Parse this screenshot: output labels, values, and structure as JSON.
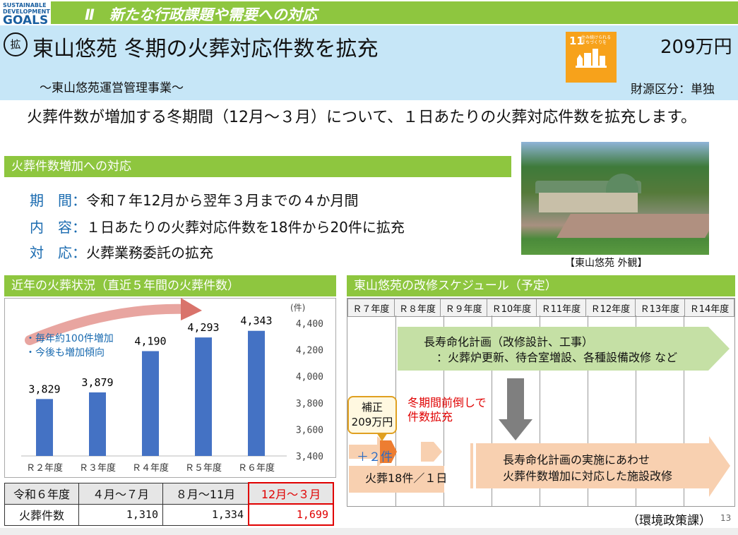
{
  "header": {
    "sdg_logo_lines": [
      "SUSTAINABLE",
      "DEVELOPMENT",
      "GOALS"
    ],
    "section": "Ⅱ　新たな行政課題や需要への対応",
    "badge": "拡",
    "title": "東山悠苑 冬期の火葬対応件数を拡充",
    "subtitle": "〜東山悠苑運営管理事業〜",
    "sdg_number": "11",
    "sdg_text": "住み続けられる まちづくりを",
    "budget": "209万円",
    "funding": "財源区分：単独"
  },
  "intro": "火葬件数が増加する冬期間（12月〜３月）について、１日あたりの火葬対応件数を拡充します。",
  "response": {
    "heading": "火葬件数増加への対応",
    "items": [
      {
        "key": "期　間：",
        "value": "令和７年12月から翌年３月までの４か月間"
      },
      {
        "key": "内　容：",
        "value": "１日あたりの火葬対応件数を18件から20件に拡充"
      },
      {
        "key": "対　応：",
        "value": "火葬業務委託の拡充"
      }
    ]
  },
  "photo_caption": "【東山悠苑 外観】",
  "chart_section_heading": "近年の火葬状況（直近５年間の火葬件数）",
  "chart_data": {
    "type": "bar",
    "categories": [
      "Ｒ２年度",
      "Ｒ３年度",
      "Ｒ４年度",
      "Ｒ５年度",
      "Ｒ６年度"
    ],
    "values": [
      3829,
      3879,
      4190,
      4293,
      4343
    ],
    "value_labels": [
      "3,829",
      "3,879",
      "4,190",
      "4,293",
      "4,343"
    ],
    "ylim": [
      3400,
      4400
    ],
    "yticks": [
      "3,400",
      "3,600",
      "3,800",
      "4,000",
      "4,200",
      "4,400"
    ],
    "yunit": "(件)",
    "annotations": [
      "・毎年約100件増加",
      "・今後も増加傾向"
    ],
    "bar_color": "#4472c4"
  },
  "table": {
    "headers": [
      "令和６年度",
      "４月〜７月",
      "８月〜11月",
      "12月〜３月"
    ],
    "row_label": "火葬件数",
    "values": [
      "1,310",
      "1,334",
      "1,699"
    ]
  },
  "schedule": {
    "heading": "東山悠苑の改修スケジュール（予定）",
    "years": [
      "Ｒ７年度",
      "Ｒ８年度",
      "Ｒ９年度",
      "Ｒ10年度",
      "Ｒ11年度",
      "Ｒ12年度",
      "Ｒ13年度",
      "Ｒ14年度"
    ],
    "plan_lines": [
      "長寿命化計画（改修設計、工事）",
      "：火葬炉更新、待合室増設、各種設備改修 など"
    ],
    "hosei_lines": [
      "補正",
      "209万円"
    ],
    "red_lines": [
      "冬期間前倒しで",
      "件数拡充"
    ],
    "plus": "＋２件",
    "current": "火葬18件／１日",
    "impl_lines": [
      "長寿命化計画の実施にあわせ",
      "火葬件数増加に対応した施設改修"
    ]
  },
  "footer": {
    "department": "（環境政策課）",
    "page": "13"
  }
}
